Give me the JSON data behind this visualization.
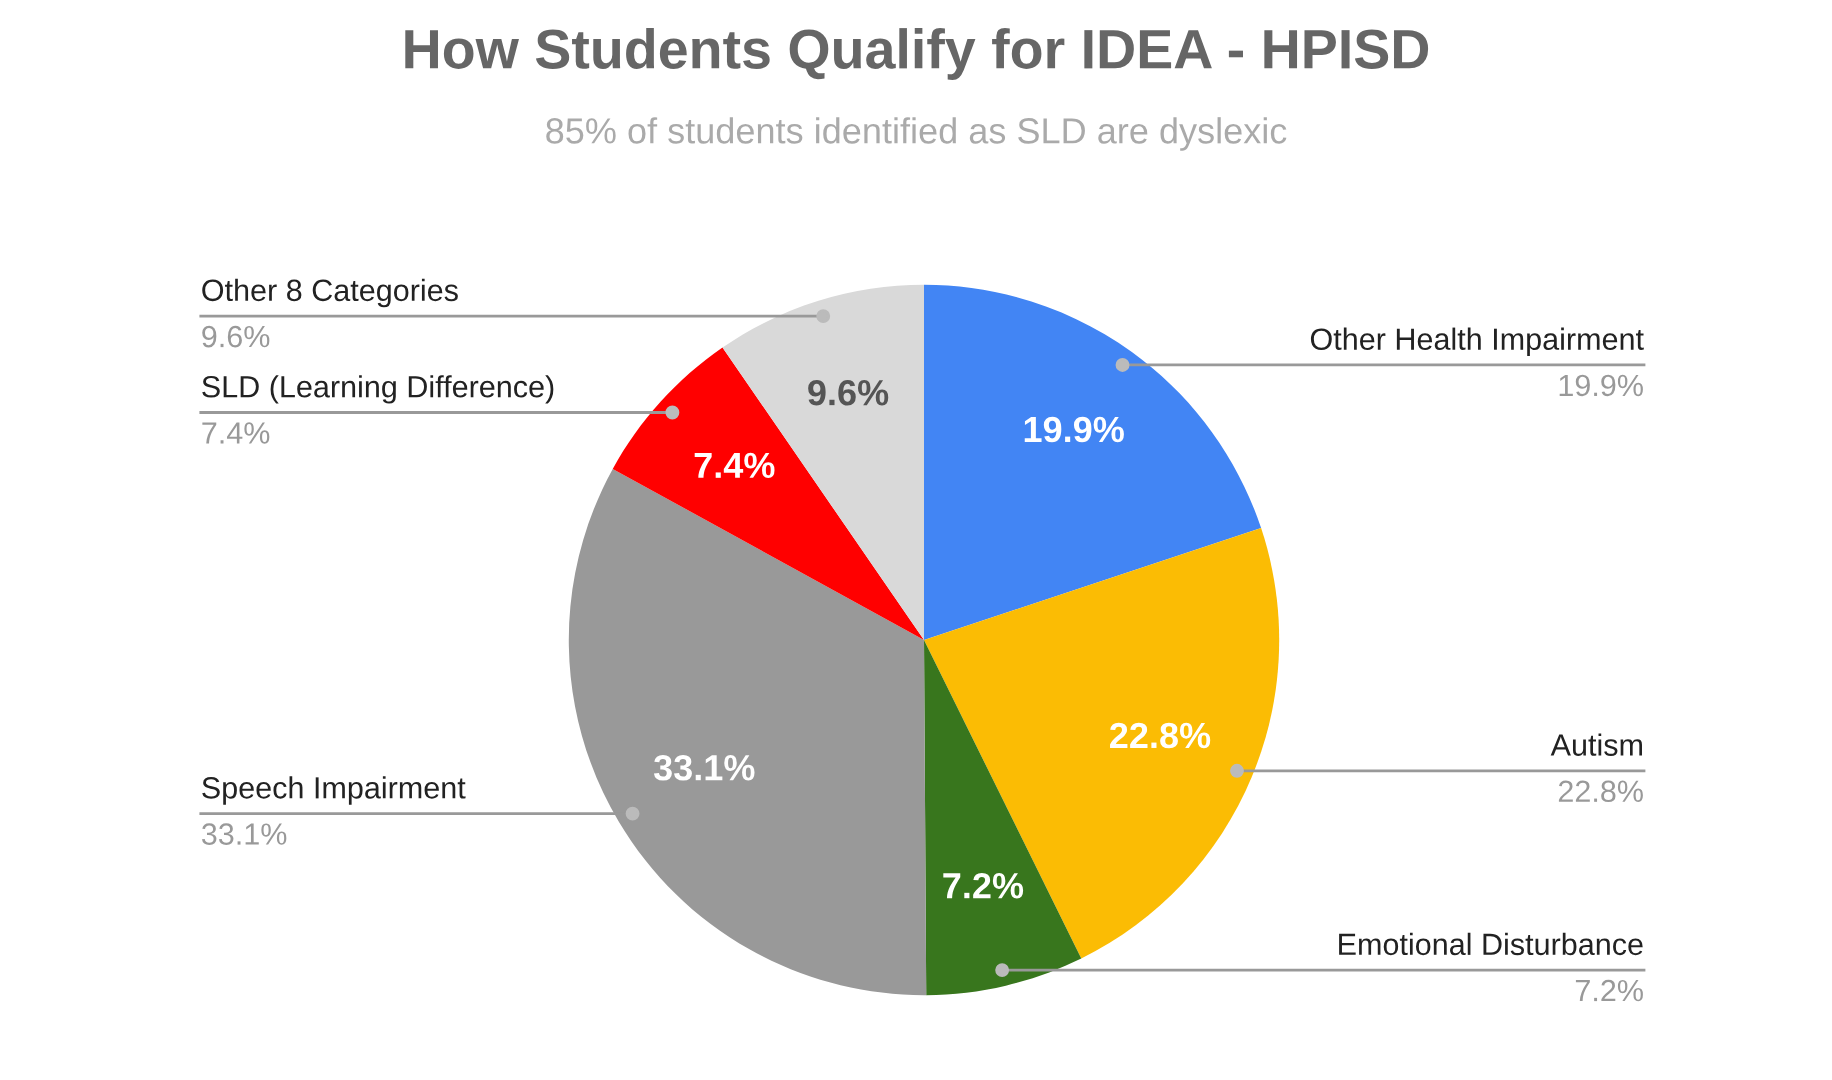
{
  "chart_data": {
    "type": "pie",
    "title": "How Students Qualify for IDEA - HPISD",
    "subtitle": "85% of students identified as SLD are dyslexic",
    "categories": [
      "Other Health Impairment",
      "Autism",
      "Emotional Disturbance",
      "Speech Impairment",
      "SLD (Learning Difference)",
      "Other 8 Categories"
    ],
    "values": [
      19.9,
      22.8,
      7.2,
      33.1,
      7.4,
      9.6
    ],
    "value_labels": [
      "19.9%",
      "22.8%",
      "7.2%",
      "33.1%",
      "7.4%",
      "9.6%"
    ],
    "colors": [
      "#4285f4",
      "#fbbc04",
      "#38761d",
      "#999999",
      "#ff0000",
      "#d9d9d9"
    ],
    "data_labels": true,
    "legend": false
  }
}
